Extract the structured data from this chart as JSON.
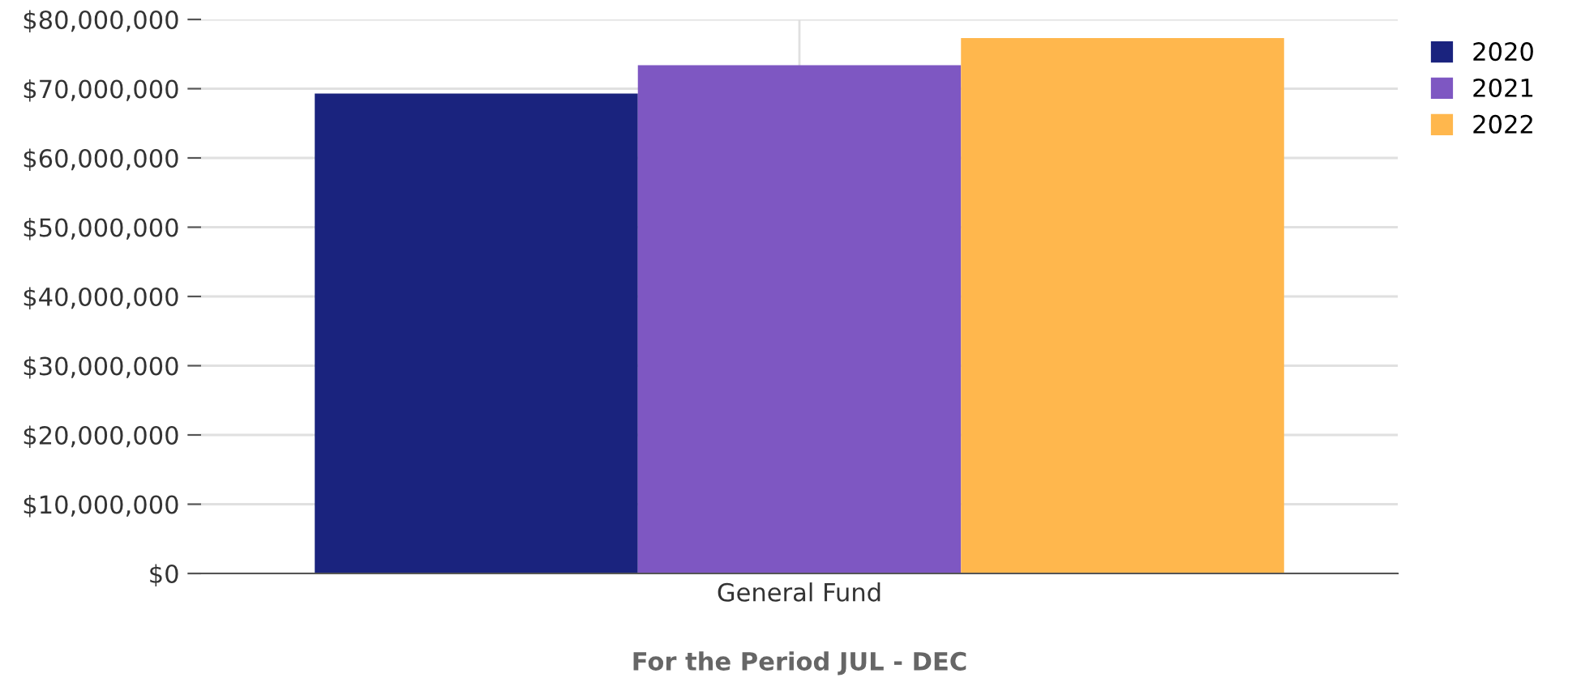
{
  "chart_data": {
    "type": "bar",
    "xlabel": "For the Period JUL - DEC",
    "categories": [
      "General Fund"
    ],
    "series": [
      {
        "name": "2020",
        "color": "#1a237e",
        "values": [
          69300000
        ]
      },
      {
        "name": "2021",
        "color": "#7e57c2",
        "values": [
          73400000
        ]
      },
      {
        "name": "2022",
        "color": "#ffb74d",
        "values": [
          77300000
        ]
      }
    ],
    "ylim": [
      0,
      80000000
    ],
    "yticks": [
      {
        "value": 0,
        "label": "$0"
      },
      {
        "value": 10000000,
        "label": "$10,000,000"
      },
      {
        "value": 20000000,
        "label": "$20,000,000"
      },
      {
        "value": 30000000,
        "label": "$30,000,000"
      },
      {
        "value": 40000000,
        "label": "$40,000,000"
      },
      {
        "value": 50000000,
        "label": "$50,000,000"
      },
      {
        "value": 60000000,
        "label": "$60,000,000"
      },
      {
        "value": 70000000,
        "label": "$70,000,000"
      },
      {
        "value": 80000000,
        "label": "$80,000,000"
      }
    ],
    "grid": true,
    "legend": "top right"
  }
}
